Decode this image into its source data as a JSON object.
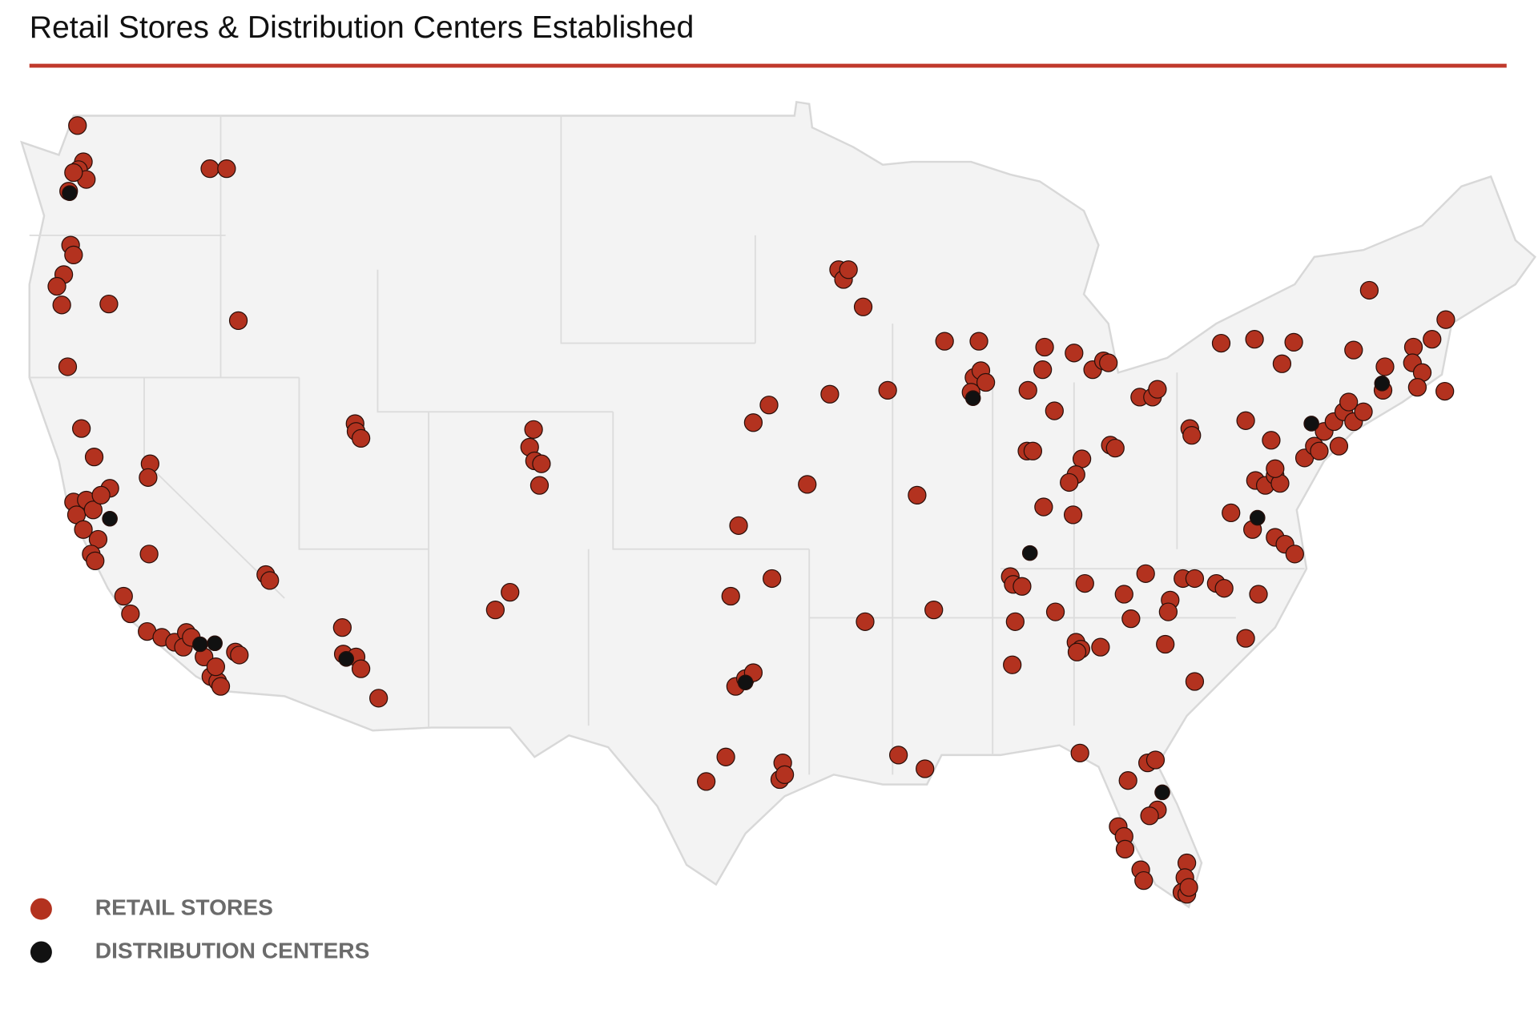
{
  "title": "Retail Stores & Distribution Centers Established",
  "legend": [
    {
      "label": "RETAIL STORES",
      "color": "#b3321f"
    },
    {
      "label": "DISTRIBUTION CENTERS",
      "color": "#111111"
    }
  ]
}
